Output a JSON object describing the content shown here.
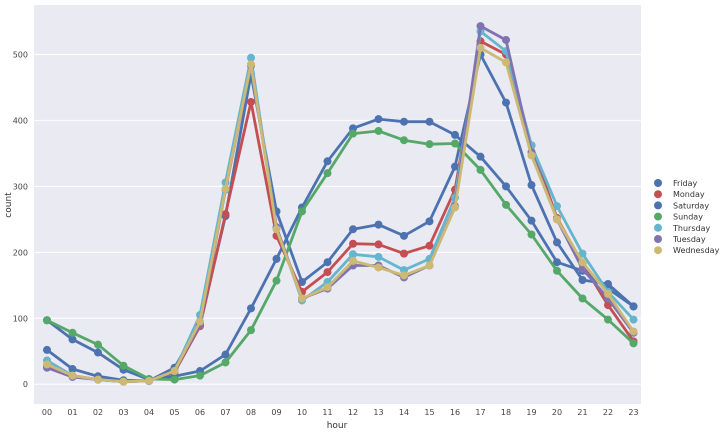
{
  "chart_data": {
    "type": "line",
    "xlabel": "hour",
    "ylabel": "count",
    "ylim": [
      -30,
      575
    ],
    "yticks": [
      0,
      100,
      200,
      300,
      400,
      500
    ],
    "categories": [
      "00",
      "01",
      "02",
      "03",
      "04",
      "05",
      "06",
      "07",
      "08",
      "09",
      "10",
      "11",
      "12",
      "13",
      "14",
      "15",
      "16",
      "17",
      "18",
      "19",
      "20",
      "21",
      "22",
      "23"
    ],
    "grid": true,
    "legend_position": "right",
    "background_color": "#eaeaf2",
    "series": [
      {
        "name": "Friday",
        "color": "#4c72b0",
        "values": [
          52,
          23,
          12,
          6,
          5,
          25,
          92,
          255,
          470,
          262,
          155,
          185,
          235,
          242,
          225,
          247,
          330,
          500,
          427,
          302,
          215,
          158,
          152,
          118
        ]
      },
      {
        "name": "Monday",
        "color": "#c44e52",
        "values": [
          27,
          13,
          7,
          4,
          5,
          18,
          88,
          258,
          428,
          225,
          140,
          170,
          213,
          212,
          198,
          210,
          295,
          520,
          500,
          362,
          252,
          183,
          120,
          65
        ]
      },
      {
        "name": "Saturday",
        "color": "#4c72b0",
        "values": [
          97,
          68,
          48,
          22,
          7,
          12,
          20,
          45,
          115,
          190,
          268,
          338,
          388,
          402,
          398,
          398,
          378,
          345,
          300,
          248,
          185,
          172,
          145,
          118
        ]
      },
      {
        "name": "Sunday",
        "color": "#55a868",
        "values": [
          97,
          78,
          60,
          28,
          8,
          7,
          13,
          33,
          82,
          157,
          262,
          320,
          380,
          384,
          370,
          364,
          365,
          325,
          272,
          227,
          172,
          130,
          98,
          62
        ]
      },
      {
        "name": "Thursday",
        "color": "#64b5cd",
        "values": [
          36,
          13,
          7,
          4,
          5,
          20,
          105,
          306,
          495,
          238,
          127,
          155,
          197,
          193,
          173,
          190,
          283,
          535,
          505,
          362,
          270,
          198,
          140,
          98
        ]
      },
      {
        "name": "Tuesday",
        "color": "#8172b2",
        "values": [
          25,
          11,
          7,
          4,
          5,
          20,
          90,
          295,
          483,
          238,
          130,
          145,
          180,
          180,
          162,
          180,
          270,
          543,
          522,
          352,
          250,
          175,
          130,
          78
        ]
      },
      {
        "name": "Wednesday",
        "color": "#ccb974",
        "values": [
          30,
          13,
          7,
          4,
          5,
          20,
          95,
          296,
          485,
          235,
          130,
          147,
          187,
          177,
          165,
          180,
          268,
          510,
          488,
          347,
          250,
          185,
          137,
          80
        ]
      }
    ]
  }
}
